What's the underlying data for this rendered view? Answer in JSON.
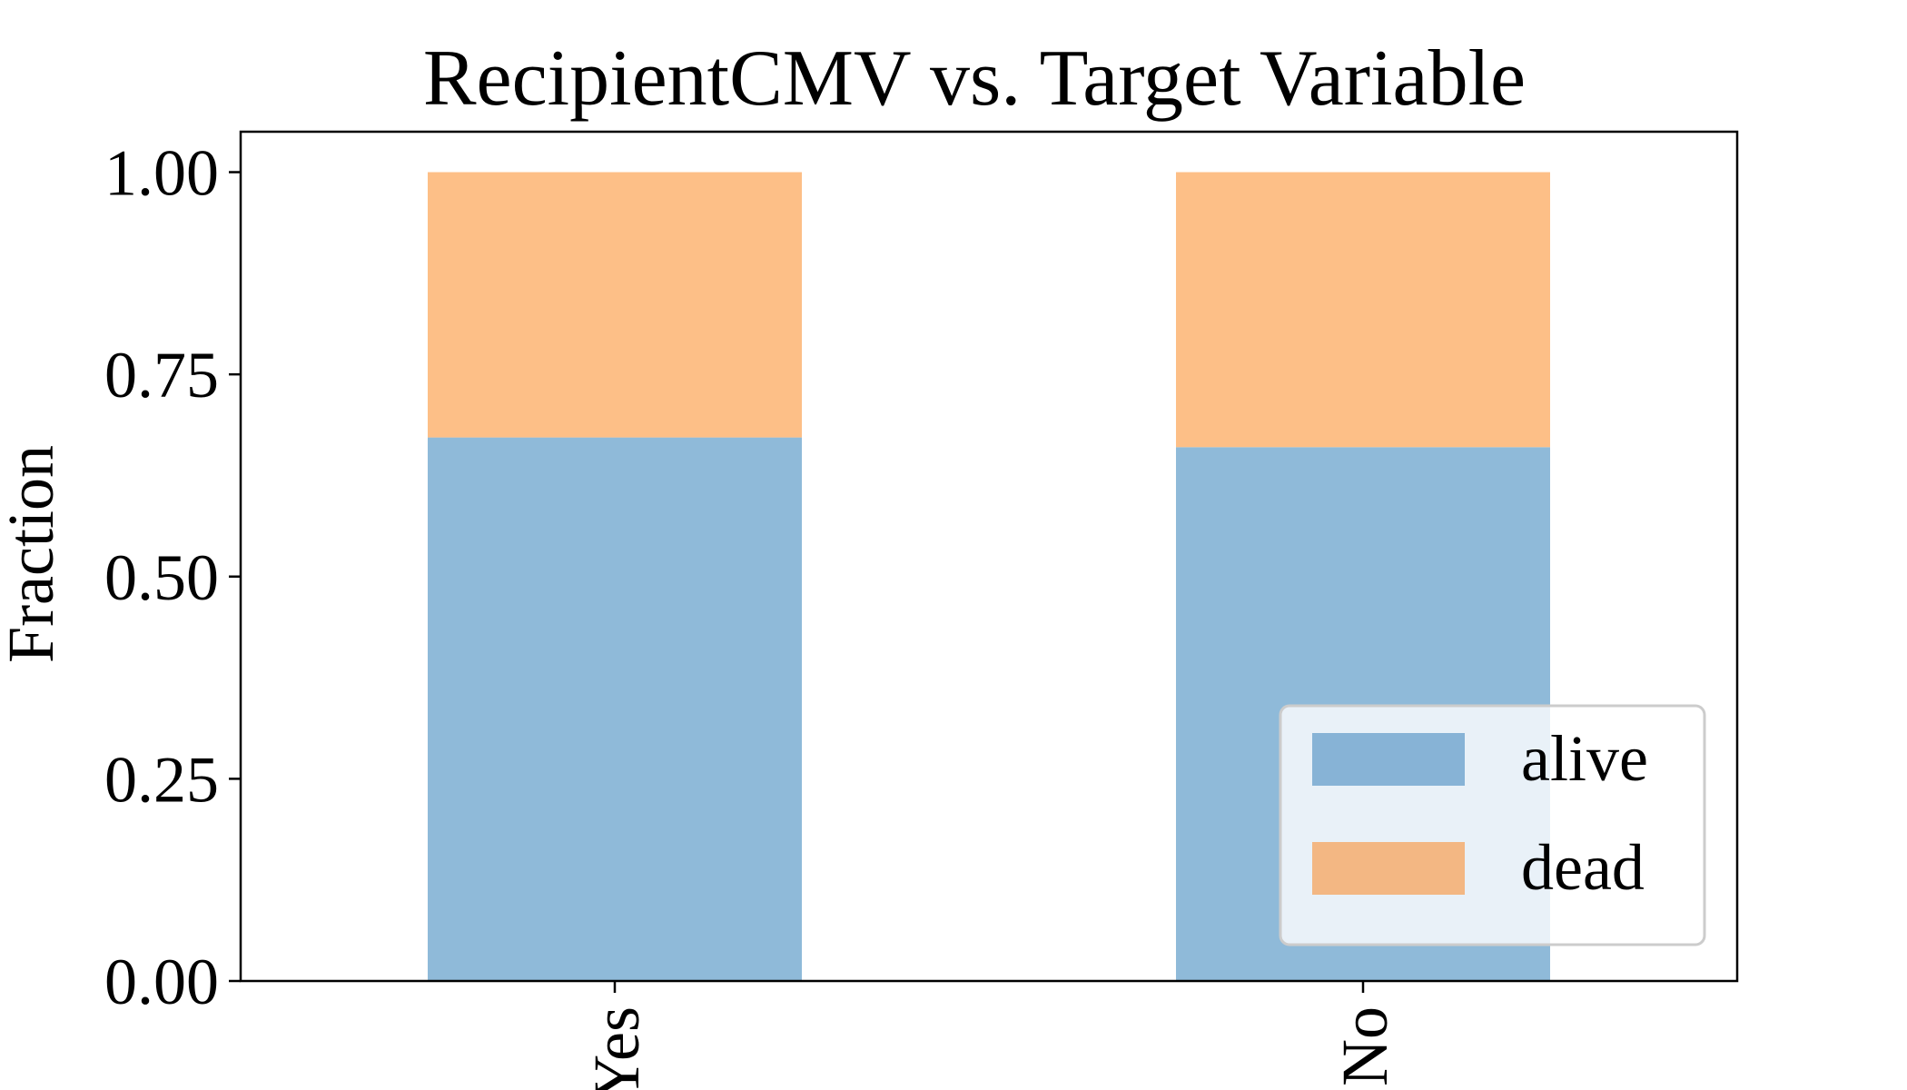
{
  "chart_data": {
    "type": "bar",
    "stacked": true,
    "title": "RecipientCMV vs. Target Variable",
    "xlabel": "",
    "ylabel": "Fraction",
    "categories": [
      "Yes",
      "No"
    ],
    "series": [
      {
        "name": "alive",
        "values": [
          0.672,
          0.66
        ],
        "color": "#8fbad9"
      },
      {
        "name": "dead",
        "values": [
          0.328,
          0.34
        ],
        "color": "#fdbf87"
      }
    ],
    "ylim": [
      0,
      1.05
    ],
    "yticks": [
      "0.00",
      "0.25",
      "0.50",
      "0.75",
      "1.00"
    ],
    "grid": false,
    "legend_position": "lower right",
    "legend_colors": {
      "alive": "#87b3d6",
      "dead": "#f3b783"
    }
  }
}
